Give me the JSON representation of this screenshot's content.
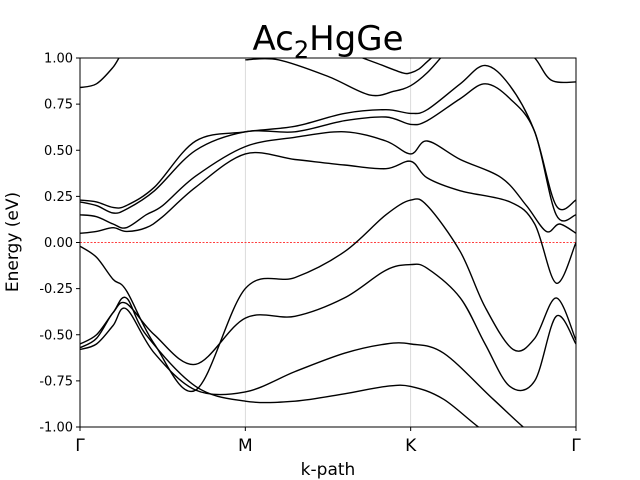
{
  "chart_data": {
    "type": "line",
    "title": {
      "base": "Ac",
      "sub": "2",
      "rest": "HgGe"
    },
    "xlabel": "k-path",
    "ylabel": "Energy (eV)",
    "ylim": [
      -1.0,
      1.0
    ],
    "yticks": [
      "-1.00",
      "-0.75",
      "-0.50",
      "-0.25",
      "0.00",
      "0.25",
      "0.50",
      "0.75",
      "1.00"
    ],
    "ytick_values": [
      -1.0,
      -0.75,
      -0.5,
      -0.25,
      0.0,
      0.25,
      0.5,
      0.75,
      1.0
    ],
    "kpoints": [
      "Γ",
      "M",
      "K",
      "Γ"
    ],
    "kpoint_positions": [
      0,
      1,
      2,
      3
    ],
    "fermi_level": 0.0,
    "fermi_color": "#ff0000",
    "band_color": "#000000",
    "grid": "vertical lines at high-symmetry points",
    "series": [
      {
        "x": [
          0,
          0.1,
          0.2,
          0.28,
          0.4,
          0.7,
          1.0,
          1.3,
          1.6,
          1.85,
          2.0,
          2.2,
          2.5,
          2.75,
          2.9,
          3.0
        ],
        "values": [
          -0.55,
          -0.5,
          -0.38,
          -0.3,
          -0.5,
          -0.78,
          -0.86,
          -0.86,
          -0.82,
          -0.78,
          -0.78,
          -0.85,
          -1.05,
          -1.05,
          -1.05,
          -1.05
        ]
      },
      {
        "x": [
          0,
          0.1,
          0.2,
          0.28,
          0.45,
          0.7,
          1.0,
          1.3,
          1.6,
          1.85,
          2.0,
          2.2,
          2.5,
          2.75,
          2.85,
          3.0
        ],
        "values": [
          -0.58,
          -0.55,
          -0.45,
          -0.36,
          -0.6,
          -0.8,
          -0.81,
          -0.7,
          -0.6,
          -0.55,
          -0.55,
          -0.6,
          -0.85,
          -1.05,
          -1.05,
          -1.05
        ]
      },
      {
        "x": [
          0,
          0.1,
          0.2,
          0.28,
          0.45,
          0.7,
          1.0,
          1.3,
          1.6,
          1.85,
          2.0,
          2.1,
          2.3,
          2.45,
          2.6,
          2.75,
          2.88,
          3.0
        ],
        "values": [
          -0.57,
          -0.52,
          -0.38,
          -0.33,
          -0.5,
          -0.66,
          -0.41,
          -0.4,
          -0.3,
          -0.15,
          -0.12,
          -0.14,
          -0.3,
          -0.55,
          -0.78,
          -0.75,
          -0.4,
          -0.55
        ]
      },
      {
        "x": [
          0,
          0.1,
          0.2,
          0.28,
          0.45,
          0.7,
          1.0,
          1.3,
          1.6,
          1.85,
          2.0,
          2.1,
          2.3,
          2.45,
          2.62,
          2.75,
          2.88,
          3.0
        ],
        "values": [
          -0.02,
          -0.08,
          -0.2,
          -0.26,
          -0.55,
          -0.8,
          -0.25,
          -0.19,
          -0.05,
          0.15,
          0.23,
          0.2,
          -0.05,
          -0.35,
          -0.58,
          -0.52,
          -0.3,
          -0.53
        ]
      },
      {
        "x": [
          0,
          0.1,
          0.2,
          0.28,
          0.4,
          0.5,
          0.7,
          1.0,
          1.3,
          1.6,
          1.85,
          2.0,
          2.1,
          2.3,
          2.6,
          2.75,
          2.88,
          3.0
        ],
        "values": [
          0.05,
          0.06,
          0.08,
          0.06,
          0.08,
          0.14,
          0.3,
          0.48,
          0.45,
          0.42,
          0.4,
          0.44,
          0.35,
          0.28,
          0.22,
          0.1,
          -0.22,
          0.0
        ]
      },
      {
        "x": [
          0,
          0.1,
          0.2,
          0.28,
          0.4,
          0.5,
          0.7,
          1.0,
          1.3,
          1.6,
          1.85,
          2.0,
          2.1,
          2.3,
          2.55,
          2.7,
          2.82,
          2.9,
          3.0
        ],
        "values": [
          0.15,
          0.14,
          0.1,
          0.08,
          0.15,
          0.2,
          0.36,
          0.52,
          0.57,
          0.6,
          0.55,
          0.48,
          0.55,
          0.45,
          0.35,
          0.2,
          0.06,
          0.1,
          0.05
        ]
      },
      {
        "x": [
          0,
          0.1,
          0.2,
          0.28,
          0.45,
          0.7,
          1.0,
          1.3,
          1.6,
          1.85,
          2.0,
          2.1,
          2.3,
          2.45,
          2.6,
          2.75,
          2.88,
          3.0
        ],
        "values": [
          0.22,
          0.2,
          0.16,
          0.18,
          0.28,
          0.5,
          0.6,
          0.6,
          0.66,
          0.68,
          0.64,
          0.66,
          0.78,
          0.86,
          0.78,
          0.6,
          0.15,
          0.15
        ]
      },
      {
        "x": [
          0,
          0.1,
          0.2,
          0.28,
          0.45,
          0.7,
          1.0,
          1.3,
          1.6,
          1.85,
          2.0,
          2.1,
          2.3,
          2.45,
          2.6,
          2.75,
          2.88,
          3.0
        ],
        "values": [
          0.23,
          0.22,
          0.19,
          0.2,
          0.3,
          0.55,
          0.6,
          0.63,
          0.7,
          0.72,
          0.7,
          0.72,
          0.86,
          0.96,
          0.85,
          0.6,
          0.2,
          0.23
        ]
      },
      {
        "x": [
          0,
          0.1,
          0.2,
          0.28,
          0.4,
          0.5
        ],
        "values": [
          0.84,
          0.86,
          0.95,
          1.05,
          1.05,
          1.05
        ]
      },
      {
        "x": [
          1.0,
          1.2,
          1.5,
          1.75,
          1.9,
          2.0,
          2.1,
          2.2
        ],
        "values": [
          0.99,
          0.99,
          0.9,
          0.8,
          0.82,
          0.85,
          0.92,
          1.02
        ]
      },
      {
        "x": [
          1.65,
          1.8,
          1.95,
          2.0,
          2.05,
          2.1,
          2.15
        ],
        "values": [
          1.02,
          0.97,
          0.92,
          0.92,
          0.94,
          0.98,
          1.02
        ]
      },
      {
        "x": [
          2.65,
          2.75,
          2.85,
          3.0
        ],
        "values": [
          1.05,
          1.0,
          0.88,
          0.87
        ]
      }
    ]
  }
}
